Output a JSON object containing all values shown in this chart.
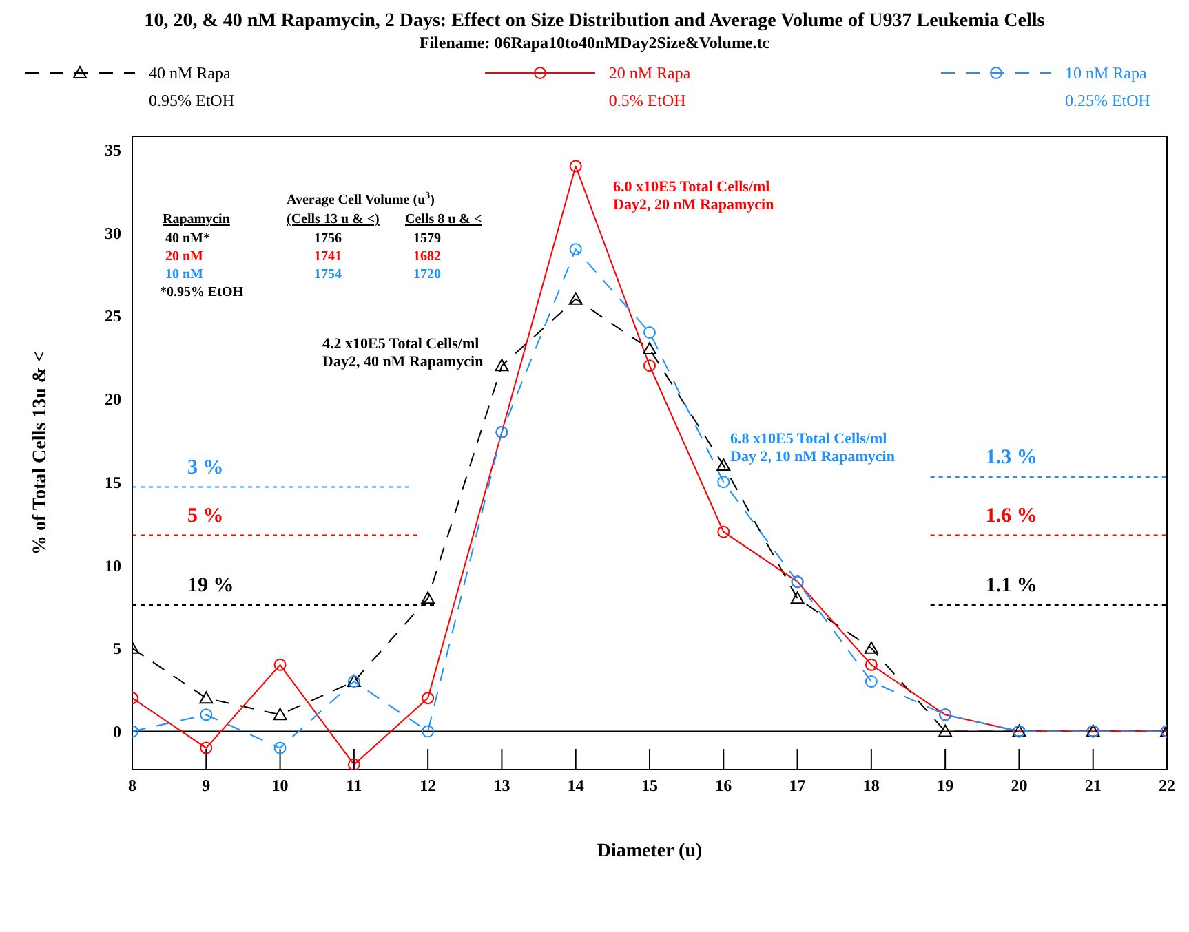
{
  "chart_data": {
    "type": "line",
    "title": "10, 20, & 40 nM Rapamycin, 2 Days: Effect on Size Distribution and Average Volume of U937 Leukemia Cells",
    "subtitle": "Filename: 06Rapa10to40nMDay2Size&Volume.tc",
    "xlabel": "Diameter (u)",
    "ylabel": "% of Total Cells 13u & <",
    "x": [
      8,
      9,
      10,
      11,
      12,
      13,
      14,
      15,
      16,
      17,
      18,
      19,
      20,
      21,
      22
    ],
    "xlim": [
      8,
      22
    ],
    "xticks": [
      8,
      9,
      10,
      11,
      12,
      13,
      14,
      15,
      16,
      17,
      18,
      19,
      20,
      21,
      22
    ],
    "ylim": [
      -2.3,
      35.8
    ],
    "yticks": [
      0,
      5,
      10,
      15,
      20,
      25,
      30,
      35
    ],
    "grid": false,
    "legend": "top",
    "series": [
      {
        "name": "40 nM Rapa\n0.95% EtOH",
        "color": "#000000",
        "marker": "triangle",
        "line_style": "dashed",
        "values": [
          5,
          2,
          1,
          3,
          8,
          22,
          26,
          23,
          16,
          8,
          5,
          0,
          0,
          0,
          0
        ]
      },
      {
        "name": "20 nM Rapa\n0.5% EtOH",
        "color": "#ff0000",
        "marker": "circle",
        "line_style": "solid",
        "values": [
          2,
          -1,
          4,
          -2,
          2,
          18,
          34,
          22,
          12,
          9,
          4,
          1,
          0,
          0,
          0
        ]
      },
      {
        "name": "10 nM Rapa\n0.25% EtOH",
        "color": "#1e90ff",
        "marker": "circle",
        "line_style": "dashed",
        "values": [
          0,
          1,
          -1,
          3,
          0,
          18,
          29,
          24,
          15,
          9,
          3,
          1,
          0,
          0,
          0
        ]
      },
      {
        "name": "3 %",
        "color": "#1e90ff",
        "marker": "none",
        "line_style": "dotted",
        "x": [
          8,
          11.8
        ],
        "values": [
          14.7,
          14.7
        ]
      },
      {
        "name": "5 %",
        "color": "#ff0000",
        "marker": "none",
        "line_style": "dotted",
        "x": [
          8,
          11.9
        ],
        "values": [
          11.8,
          11.8
        ]
      },
      {
        "name": "19 %",
        "color": "#000000",
        "marker": "none",
        "line_style": "dotted",
        "x": [
          8,
          12.1
        ],
        "values": [
          7.6,
          7.6
        ]
      },
      {
        "name": "1.3 %",
        "color": "#1e90ff",
        "marker": "none",
        "line_style": "dotted",
        "x": [
          18.8,
          22
        ],
        "values": [
          15.3,
          15.3
        ]
      },
      {
        "name": "1.6 %",
        "color": "#ff0000",
        "marker": "none",
        "line_style": "dotted",
        "x": [
          18.8,
          22
        ],
        "values": [
          11.8,
          11.8
        ]
      },
      {
        "name": "1.1 %",
        "color": "#000000",
        "marker": "none",
        "line_style": "dotted",
        "x": [
          18.8,
          22
        ],
        "values": [
          7.6,
          7.6
        ]
      }
    ],
    "ref_lines": [
      {
        "axis": "y",
        "value": 0,
        "color": "#000000",
        "line_style": "solid"
      }
    ],
    "annotations": [
      "Average Cell Volume (u$^{3}$)",
      "Rapamycin",
      "(Cells 13 u & <)",
      "Cells 8 u & <",
      "40 nM*",
      "1756",
      "1579",
      "20 nM",
      "1741",
      "1682",
      "10 nM",
      "1754",
      "1720",
      "*0.95% EtOH",
      "6.0 x10E5 Total Cells/ml\nDay2, 20 nM Rapamycin",
      "4.2 x10E5 Total Cells/ml\nDay2, 40 nM Rapamycin",
      "6.8 x10E5 Total Cells/ml\nDay 2, 10 nM Rapamycin"
    ]
  }
}
